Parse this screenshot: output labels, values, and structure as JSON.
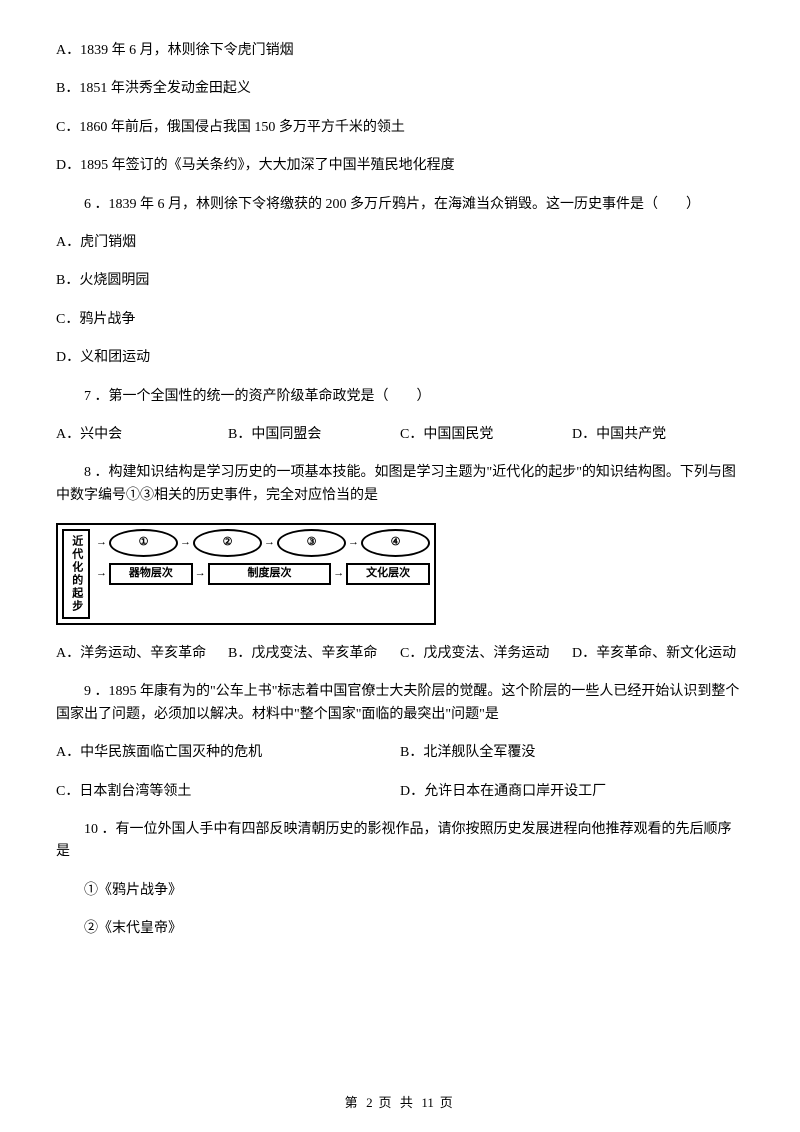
{
  "q5": {
    "a": "A．1839 年 6 月，林则徐下令虎门销烟",
    "b": "B．1851 年洪秀全发动金田起义",
    "c": "C．1860 年前后，俄国侵占我国 150 多万平方千米的领土",
    "d": "D．1895 年签订的《马关条约》，大大加深了中国半殖民地化程度"
  },
  "q6": {
    "stem": "6 ．1839 年 6 月，林则徐下令将缴获的 200 多万斤鸦片，在海滩当众销毁。这一历史事件是（　　）",
    "a": "A．虎门销烟",
    "b": "B．火烧圆明园",
    "c": "C．鸦片战争",
    "d": "D．义和团运动"
  },
  "q7": {
    "stem": "7 ．第一个全国性的统一的资产阶级革命政党是（　　）",
    "a": "A．兴中会",
    "b": "B．中国同盟会",
    "c": "C．中国国民党",
    "d": "D．中国共产党"
  },
  "q8": {
    "stem": "8 ．构建知识结构是学习历史的一项基本技能。如图是学习主题为\"近代化的起步\"的知识结构图。下列与图中数字编号①③相关的历史事件，完全对应恰当的是",
    "diagram": {
      "left": "近代化的起步",
      "ovals": [
        "①",
        "②",
        "③",
        "④"
      ],
      "rects": [
        "器物层次",
        "制度层次",
        "文化层次"
      ]
    },
    "a": "A．洋务运动、辛亥革命",
    "b": "B．戊戌变法、辛亥革命",
    "c": "C．戊戌变法、洋务运动",
    "d": "D．辛亥革命、新文化运动"
  },
  "q9": {
    "stem": "9 ．1895 年康有为的\"公车上书\"标志着中国官僚士大夫阶层的觉醒。这个阶层的一些人已经开始认识到整个国家出了问题，必须加以解决。材料中\"整个国家\"面临的最突出\"问题\"是",
    "a": "A．中华民族面临亡国灭种的危机",
    "b": "B．北洋舰队全军覆没",
    "c": "C．日本割台湾等领土",
    "d": "D．允许日本在通商口岸开设工厂"
  },
  "q10": {
    "stem": "10 ．有一位外国人手中有四部反映清朝历史的影视作品，请你按照历史发展进程向他推荐观看的先后顺序是",
    "o1": "①《鸦片战争》",
    "o2": "②《末代皇帝》"
  },
  "footer": {
    "text_a": "第 ",
    "page": "2",
    "text_b": " 页 共 ",
    "total": "11",
    "text_c": " 页"
  }
}
